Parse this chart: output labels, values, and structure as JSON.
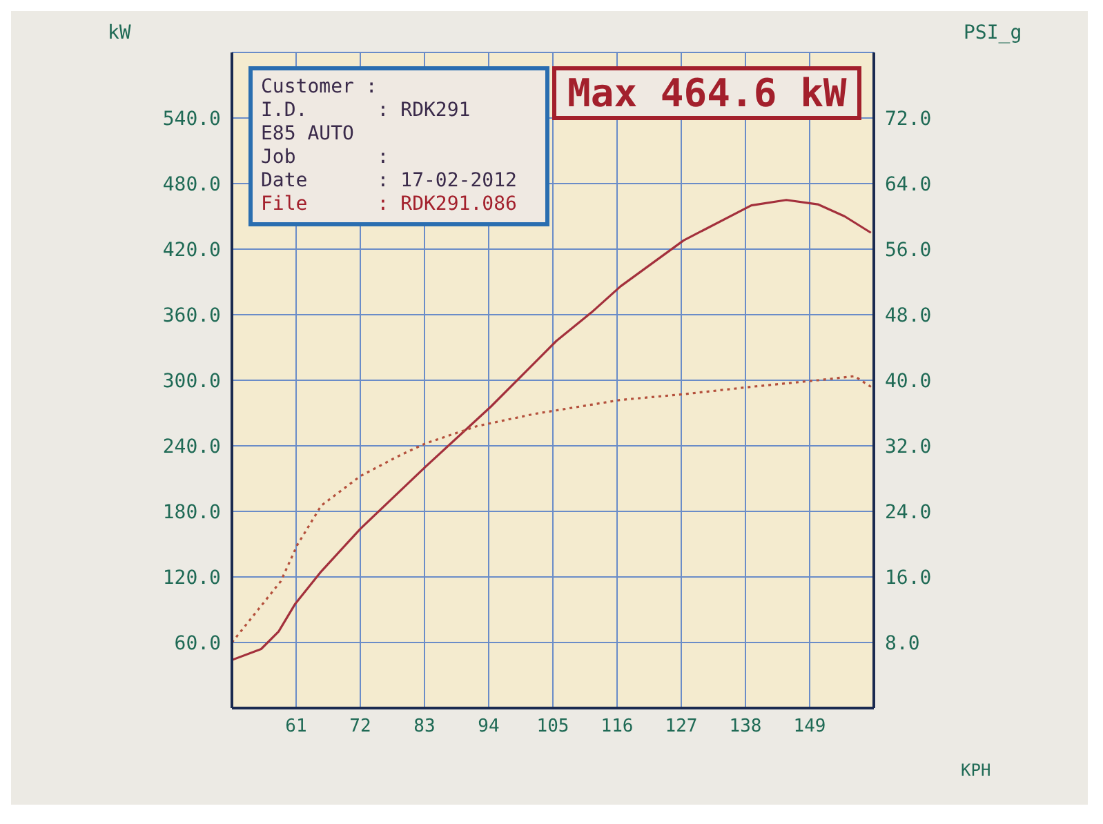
{
  "chart_data": {
    "type": "line",
    "xlabel": "KPH",
    "ylabel": "kW",
    "y2label": "PSI_g",
    "annotations": [
      "Max 464.6 kW",
      "Customer :",
      "I.D.      : RDK291",
      "E85 AUTO",
      "Job       :",
      "Date      : 17-02-2012",
      "File      : RDK291.086"
    ],
    "xlim": [
      50,
      160
    ],
    "xticks": [
      61,
      72,
      83,
      94,
      105,
      116,
      127,
      138,
      149
    ],
    "ylim": [
      0,
      600
    ],
    "yticks": [
      {
        "value": 60,
        "label": "60.0"
      },
      {
        "value": 120,
        "label": "120.0"
      },
      {
        "value": 180,
        "label": "180.0"
      },
      {
        "value": 240,
        "label": "240.0"
      },
      {
        "value": 300,
        "label": "300.0"
      },
      {
        "value": 360,
        "label": "360.0"
      },
      {
        "value": 420,
        "label": "420.0"
      },
      {
        "value": 480,
        "label": "480.0"
      },
      {
        "value": 540,
        "label": "540.0"
      }
    ],
    "y2lim": [
      0,
      80
    ],
    "y2ticks": [
      {
        "value": 8,
        "label": "8.0"
      },
      {
        "value": 16,
        "label": "16.0"
      },
      {
        "value": 24,
        "label": "24.0"
      },
      {
        "value": 32,
        "label": "32.0"
      },
      {
        "value": 40,
        "label": "40.0"
      },
      {
        "value": 48,
        "label": "48.0"
      },
      {
        "value": 56,
        "label": "56.0"
      },
      {
        "value": 64,
        "label": "64.0"
      },
      {
        "value": 72,
        "label": "72.0"
      }
    ],
    "grid": true,
    "marker": "none",
    "series": [
      {
        "color": "#a3303c",
        "line_style": "solid",
        "x": [
          50,
          55,
          58,
          60.8,
          65.3,
          72,
          83.2,
          94.4,
          105.6,
          111.6,
          116.6,
          127.4,
          139,
          145,
          150.4,
          155,
          159.5
        ],
        "values": [
          44,
          54,
          70,
          95,
          125,
          164,
          221,
          276,
          336,
          362,
          386,
          428,
          460,
          465,
          461,
          450,
          435
        ]
      },
      {
        "color": "#b4503c",
        "line_style": "dotted",
        "axis": "y2",
        "x": [
          50,
          58.4,
          61.2,
          65.3,
          72,
          78.4,
          83.2,
          92,
          101.9,
          116.6,
          127.4,
          139,
          150.4,
          156.7,
          159.5
        ],
        "values": [
          8,
          15.5,
          19.9,
          24.7,
          28.3,
          30.7,
          32.3,
          34.4,
          35.9,
          37.6,
          38.3,
          39.2,
          40,
          40.5,
          39.2
        ]
      }
    ]
  }
}
